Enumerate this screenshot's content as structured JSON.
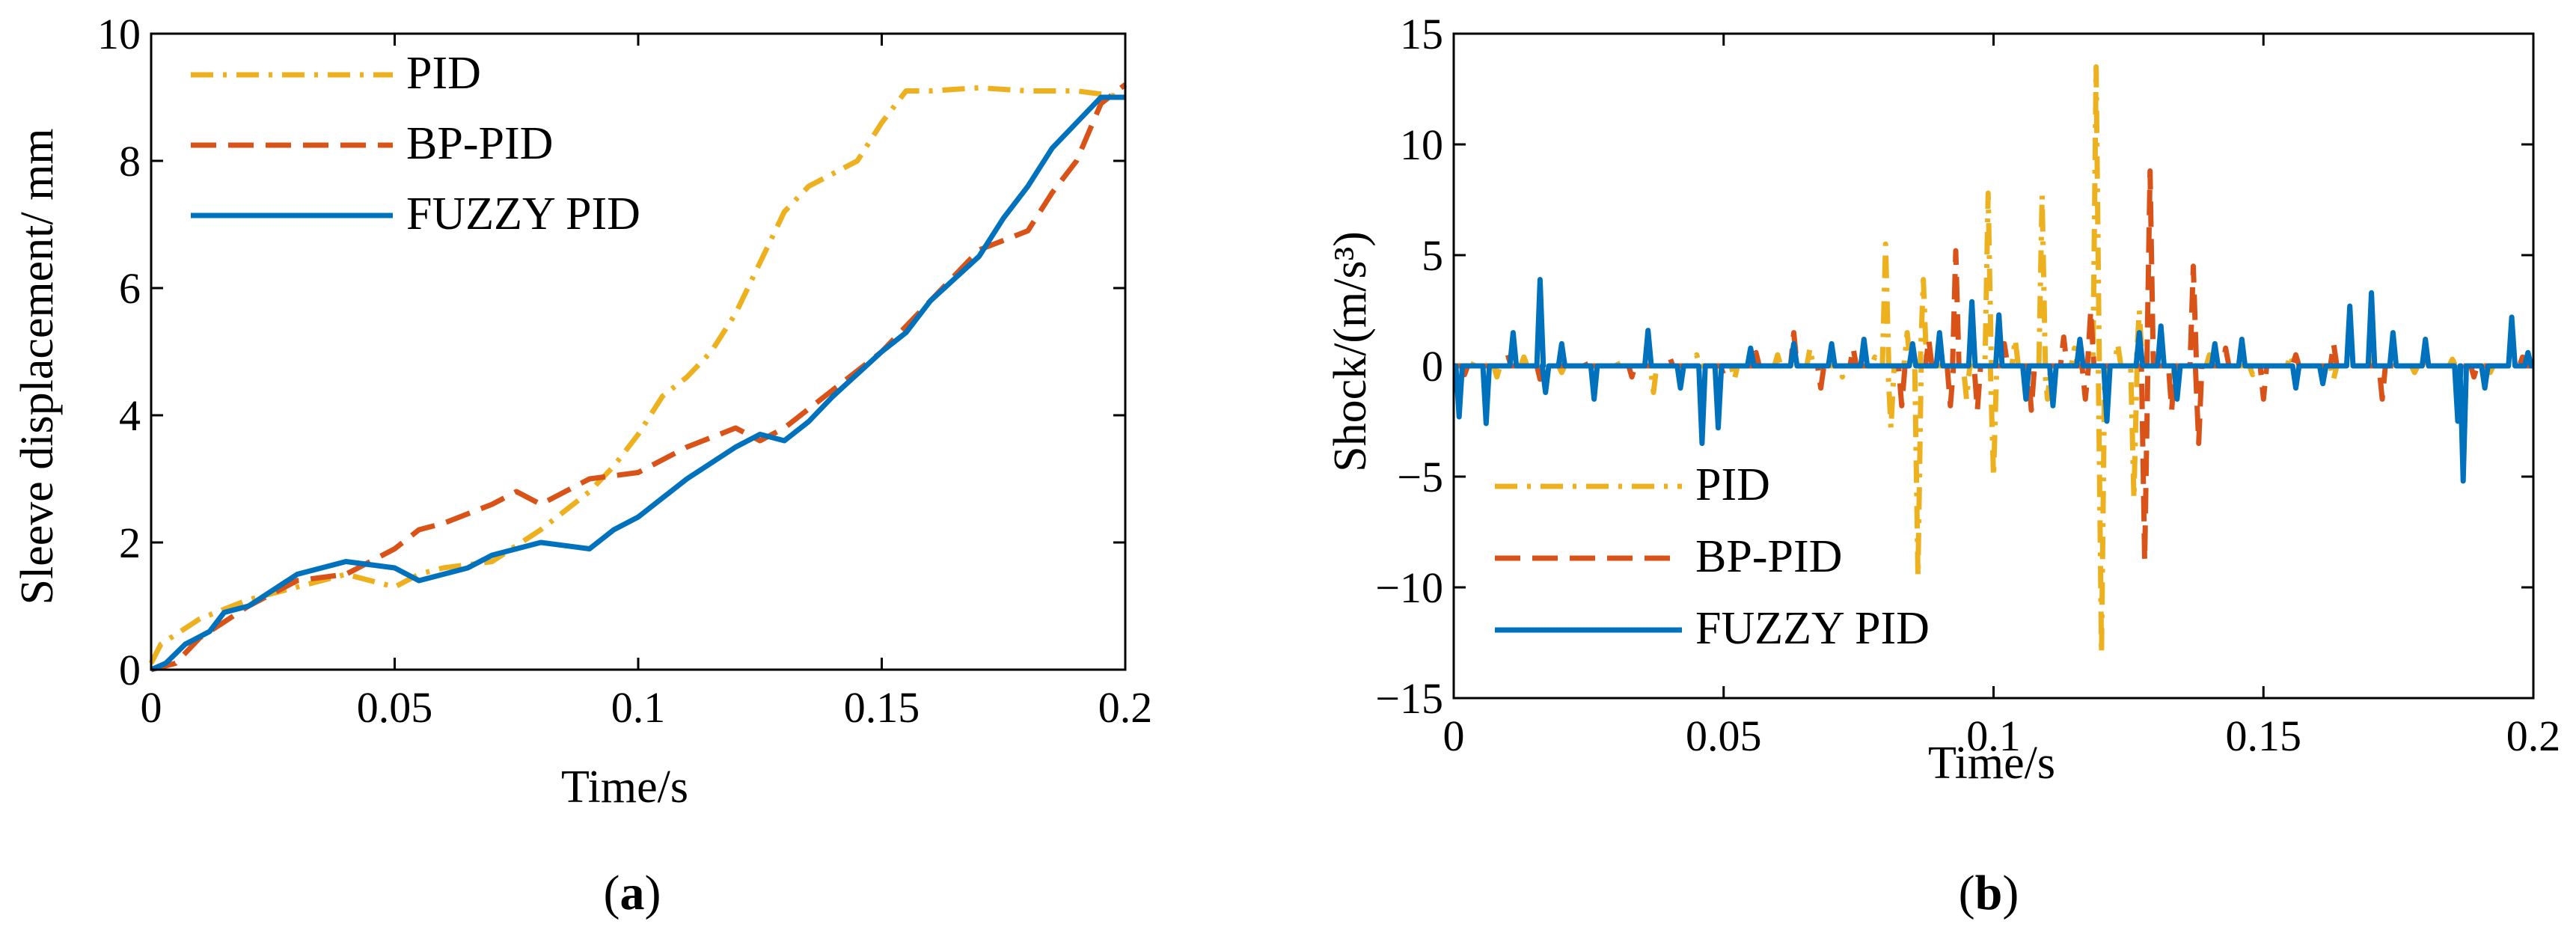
{
  "colors": {
    "pid": "#EDB120",
    "bp_pid": "#D95319",
    "fuzzy_pid": "#0072BD"
  },
  "captions": {
    "a": "a",
    "b": "b"
  },
  "chart_data": [
    {
      "id": "a",
      "type": "line",
      "xlabel": "Time/s",
      "ylabel": "Sleeve displacement/ mm",
      "xlim": [
        0,
        0.2
      ],
      "ylim": [
        0,
        10
      ],
      "xticks": [
        "0",
        "0.05",
        "0.1",
        "0.15",
        "0.2"
      ],
      "yticks": [
        "0",
        "2",
        "4",
        "6",
        "8",
        "10"
      ],
      "legend_position": "top-left",
      "series": [
        {
          "name": "PID",
          "style": "dashdot",
          "x": [
            0,
            0.002,
            0.01,
            0.02,
            0.03,
            0.04,
            0.05,
            0.055,
            0.06,
            0.07,
            0.08,
            0.09,
            0.095,
            0.1,
            0.105,
            0.11,
            0.115,
            0.12,
            0.125,
            0.13,
            0.135,
            0.14,
            0.145,
            0.15,
            0.155,
            0.16,
            0.17,
            0.18,
            0.19,
            0.2
          ],
          "y": [
            0.1,
            0.4,
            0.8,
            1.1,
            1.3,
            1.5,
            1.3,
            1.5,
            1.6,
            1.7,
            2.2,
            2.8,
            3.2,
            3.7,
            4.3,
            4.6,
            5.0,
            5.6,
            6.4,
            7.2,
            7.6,
            7.8,
            8.0,
            8.6,
            9.1,
            9.1,
            9.15,
            9.1,
            9.1,
            9.0
          ]
        },
        {
          "name": "BP-PID",
          "style": "dashed",
          "x": [
            0,
            0.005,
            0.01,
            0.02,
            0.03,
            0.04,
            0.05,
            0.055,
            0.06,
            0.07,
            0.075,
            0.08,
            0.09,
            0.1,
            0.11,
            0.12,
            0.125,
            0.13,
            0.14,
            0.15,
            0.16,
            0.165,
            0.17,
            0.18,
            0.185,
            0.19,
            0.195,
            0.2
          ],
          "y": [
            0,
            0.1,
            0.5,
            1.0,
            1.4,
            1.5,
            1.9,
            2.2,
            2.3,
            2.6,
            2.8,
            2.6,
            3.0,
            3.1,
            3.5,
            3.8,
            3.6,
            3.8,
            4.4,
            5.0,
            5.8,
            6.2,
            6.6,
            6.9,
            7.5,
            8.0,
            8.9,
            9.2
          ]
        },
        {
          "name": "FUZZY PID",
          "style": "solid",
          "x": [
            0,
            0.003,
            0.007,
            0.012,
            0.015,
            0.02,
            0.03,
            0.04,
            0.05,
            0.055,
            0.06,
            0.065,
            0.07,
            0.08,
            0.09,
            0.095,
            0.1,
            0.105,
            0.11,
            0.12,
            0.125,
            0.13,
            0.135,
            0.14,
            0.15,
            0.155,
            0.16,
            0.17,
            0.175,
            0.18,
            0.185,
            0.19,
            0.195,
            0.2
          ],
          "y": [
            0,
            0.1,
            0.4,
            0.6,
            0.9,
            1.0,
            1.5,
            1.7,
            1.6,
            1.4,
            1.5,
            1.6,
            1.8,
            2.0,
            1.9,
            2.2,
            2.4,
            2.7,
            3.0,
            3.5,
            3.7,
            3.6,
            3.9,
            4.3,
            5.0,
            5.3,
            5.8,
            6.5,
            7.1,
            7.6,
            8.2,
            8.6,
            9.0,
            9.0
          ]
        }
      ]
    },
    {
      "id": "b",
      "type": "line",
      "xlabel": "Time/s",
      "ylabel": "Shock/(m/s³)",
      "xlim": [
        0,
        0.2
      ],
      "ylim": [
        -15,
        15
      ],
      "xticks": [
        "0",
        "0.05",
        "0.1",
        "0.15",
        "0.2"
      ],
      "yticks": [
        "−15",
        "−10",
        "−5",
        "0",
        "5",
        "10",
        "15"
      ],
      "legend_position": "bottom-left",
      "series": [
        {
          "name": "PID",
          "style": "dashdot",
          "spikes": [
            [
              0.004,
              0.3
            ],
            [
              0.008,
              -0.5
            ],
            [
              0.013,
              0.4
            ],
            [
              0.02,
              -0.3
            ],
            [
              0.03,
              0.3
            ],
            [
              0.037,
              -1.2
            ],
            [
              0.045,
              0.5
            ],
            [
              0.052,
              -0.6
            ],
            [
              0.06,
              0.5
            ],
            [
              0.066,
              0.8
            ],
            [
              0.072,
              -0.5
            ],
            [
              0.078,
              0.4
            ],
            [
              0.08,
              5.5
            ],
            [
              0.081,
              -2.8
            ],
            [
              0.084,
              1.5
            ],
            [
              0.086,
              -9.5
            ],
            [
              0.087,
              3.9
            ],
            [
              0.095,
              -1.5
            ],
            [
              0.099,
              7.8
            ],
            [
              0.1,
              -5.0
            ],
            [
              0.104,
              1.2
            ],
            [
              0.109,
              7.7
            ],
            [
              0.11,
              -1.5
            ],
            [
              0.115,
              0.8
            ],
            [
              0.119,
              13.5
            ],
            [
              0.12,
              -13.0
            ],
            [
              0.123,
              1.0
            ],
            [
              0.126,
              -6.0
            ],
            [
              0.127,
              2.5
            ],
            [
              0.133,
              -0.8
            ],
            [
              0.14,
              0.5
            ],
            [
              0.148,
              -0.4
            ],
            [
              0.155,
              0.5
            ],
            [
              0.163,
              -0.6
            ],
            [
              0.17,
              0.4
            ],
            [
              0.178,
              -0.3
            ],
            [
              0.185,
              0.3
            ],
            [
              0.192,
              -0.3
            ],
            [
              0.199,
              0.3
            ]
          ]
        },
        {
          "name": "BP-PID",
          "style": "dashed",
          "spikes": [
            [
              0.002,
              -0.4
            ],
            [
              0.01,
              0.5
            ],
            [
              0.016,
              -0.6
            ],
            [
              0.024,
              0.3
            ],
            [
              0.033,
              -0.5
            ],
            [
              0.04,
              0.4
            ],
            [
              0.05,
              -0.4
            ],
            [
              0.056,
              0.6
            ],
            [
              0.063,
              1.5
            ],
            [
              0.068,
              -1.0
            ],
            [
              0.074,
              0.8
            ],
            [
              0.083,
              -1.8
            ],
            [
              0.088,
              1.2
            ],
            [
              0.092,
              -1.8
            ],
            [
              0.093,
              5.2
            ],
            [
              0.097,
              -2.0
            ],
            [
              0.102,
              1.0
            ],
            [
              0.107,
              -2.0
            ],
            [
              0.113,
              1.3
            ],
            [
              0.117,
              -1.5
            ],
            [
              0.118,
              2.5
            ],
            [
              0.128,
              -8.8
            ],
            [
              0.129,
              8.8
            ],
            [
              0.133,
              -2.0
            ],
            [
              0.137,
              4.5
            ],
            [
              0.138,
              -3.5
            ],
            [
              0.143,
              0.8
            ],
            [
              0.15,
              -1.5
            ],
            [
              0.156,
              0.5
            ],
            [
              0.163,
              1.0
            ],
            [
              0.172,
              -1.5
            ],
            [
              0.18,
              0.5
            ],
            [
              0.189,
              -0.5
            ],
            [
              0.198,
              0.4
            ]
          ]
        },
        {
          "name": "FUZZY PID",
          "style": "solid",
          "spikes": [
            [
              0.001,
              -2.3
            ],
            [
              0.006,
              -2.6
            ],
            [
              0.011,
              1.5
            ],
            [
              0.016,
              3.9
            ],
            [
              0.017,
              -1.2
            ],
            [
              0.02,
              1.0
            ],
            [
              0.026,
              -1.5
            ],
            [
              0.036,
              1.6
            ],
            [
              0.042,
              -1.0
            ],
            [
              0.046,
              -3.5
            ],
            [
              0.049,
              -2.8
            ],
            [
              0.055,
              0.8
            ],
            [
              0.063,
              1.0
            ],
            [
              0.07,
              1.0
            ],
            [
              0.076,
              1.2
            ],
            [
              0.085,
              1.0
            ],
            [
              0.09,
              1.5
            ],
            [
              0.096,
              2.9
            ],
            [
              0.101,
              2.3
            ],
            [
              0.106,
              -1.5
            ],
            [
              0.111,
              -1.8
            ],
            [
              0.116,
              1.2
            ],
            [
              0.121,
              -2.5
            ],
            [
              0.127,
              1.5
            ],
            [
              0.131,
              1.8
            ],
            [
              0.134,
              -1.5
            ],
            [
              0.141,
              1.0
            ],
            [
              0.146,
              1.2
            ],
            [
              0.156,
              -1.0
            ],
            [
              0.161,
              -0.8
            ],
            [
              0.166,
              2.7
            ],
            [
              0.17,
              3.3
            ],
            [
              0.174,
              1.5
            ],
            [
              0.18,
              1.2
            ],
            [
              0.186,
              -2.5
            ],
            [
              0.187,
              -5.2
            ],
            [
              0.191,
              -1.0
            ],
            [
              0.196,
              2.2
            ],
            [
              0.199,
              0.6
            ]
          ]
        }
      ]
    }
  ]
}
